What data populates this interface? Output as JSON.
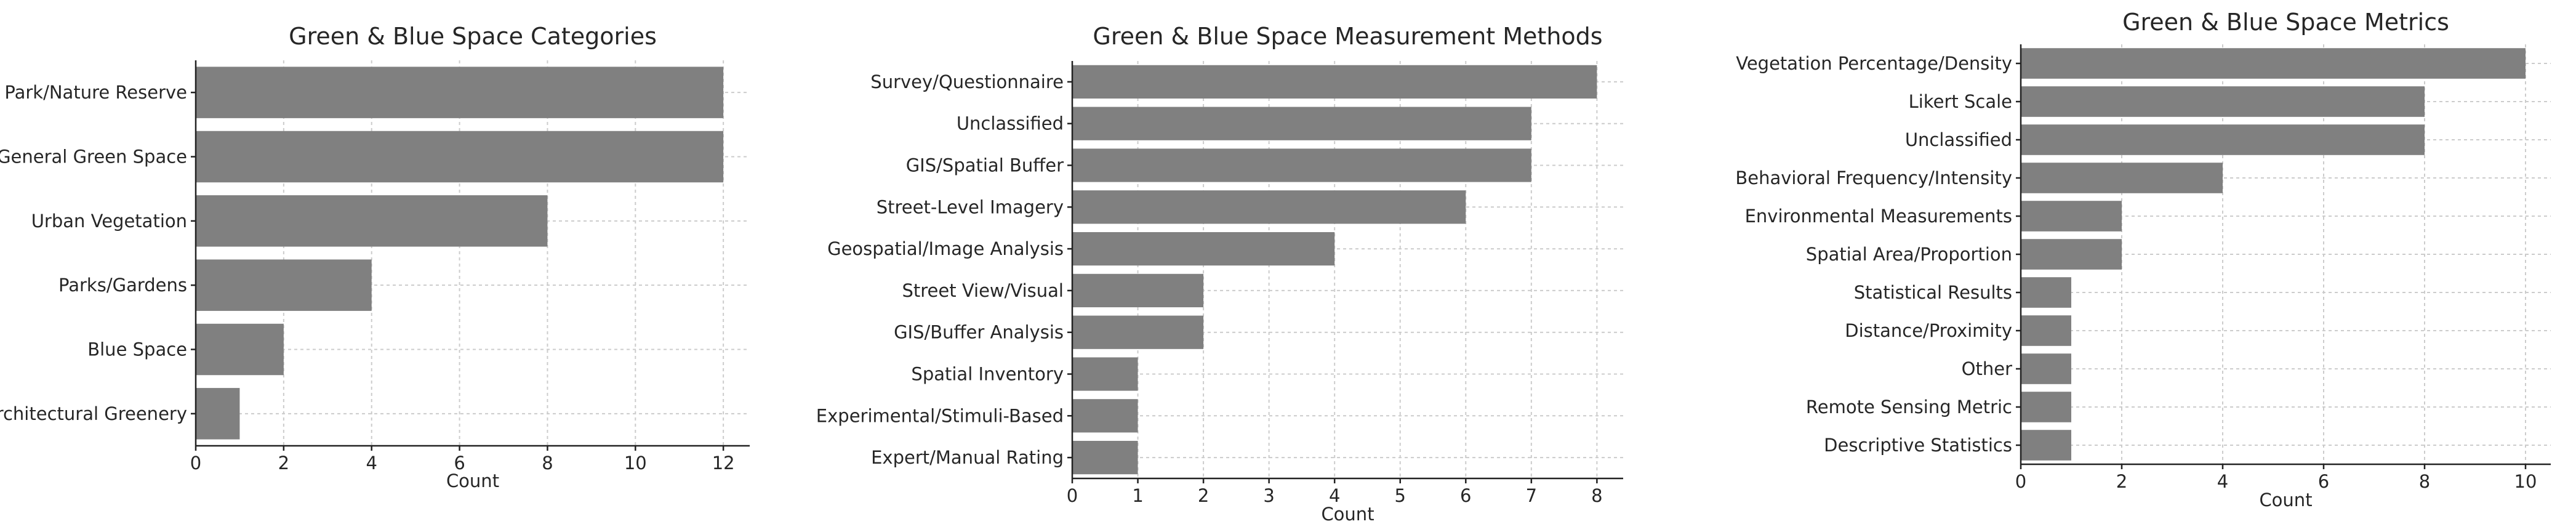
{
  "chart_data": [
    {
      "type": "bar",
      "orientation": "horizontal",
      "title": "Green & Blue Space Categories",
      "xlabel": "Count",
      "ylabel": "",
      "xlim": [
        0,
        12.6
      ],
      "xticks": [
        0,
        2,
        4,
        6,
        8,
        10,
        12
      ],
      "grid": true,
      "categories": [
        "Park/Nature Reserve",
        "General Green Space",
        "Urban Vegetation",
        "Parks/Gardens",
        "Blue Space",
        "Architectural Greenery"
      ],
      "values": [
        12,
        12,
        8,
        4,
        2,
        1
      ]
    },
    {
      "type": "bar",
      "orientation": "horizontal",
      "title": "Green & Blue Space Measurement Methods",
      "xlabel": "Count",
      "ylabel": "",
      "xlim": [
        0,
        8.4
      ],
      "xticks": [
        0,
        1,
        2,
        3,
        4,
        5,
        6,
        7,
        8
      ],
      "grid": true,
      "categories": [
        "Survey/Questionnaire",
        "Unclassified",
        "GIS/Spatial Buffer",
        "Street-Level Imagery",
        "Geospatial/Image Analysis",
        "Street View/Visual",
        "GIS/Buffer Analysis",
        "Spatial Inventory",
        "Experimental/Stimuli-Based",
        "Expert/Manual Rating"
      ],
      "values": [
        8,
        7,
        7,
        6,
        4,
        2,
        2,
        1,
        1,
        1
      ]
    },
    {
      "type": "bar",
      "orientation": "horizontal",
      "title": "Green & Blue Space Metrics",
      "xlabel": "Count",
      "ylabel": "",
      "xlim": [
        0,
        10.5
      ],
      "xticks": [
        0,
        2,
        4,
        6,
        8,
        10
      ],
      "grid": true,
      "categories": [
        "Vegetation Percentage/Density",
        "Likert Scale",
        "Unclassified",
        "Behavioral Frequency/Intensity",
        "Environmental Measurements",
        "Spatial Area/Proportion",
        "Statistical Results",
        "Distance/Proximity",
        "Other",
        "Remote Sensing Metric",
        "Descriptive Statistics"
      ],
      "values": [
        10,
        8,
        8,
        4,
        2,
        2,
        1,
        1,
        1,
        1,
        1
      ]
    }
  ]
}
